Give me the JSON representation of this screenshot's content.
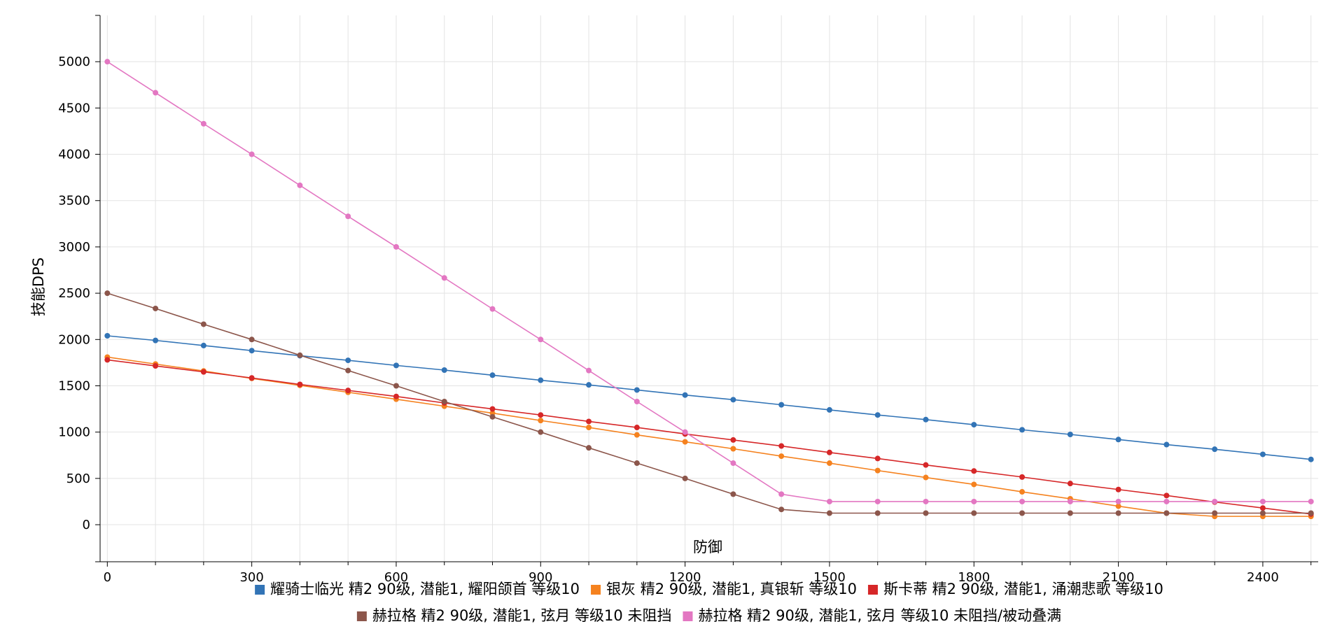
{
  "chart_data": {
    "type": "line",
    "xlabel": "防御",
    "ylabel": "技能DPS",
    "xlim": [
      -15,
      2515
    ],
    "ylim": [
      -400,
      5500
    ],
    "x_ticks": [
      0,
      300,
      600,
      900,
      1200,
      1500,
      1800,
      2100,
      2400
    ],
    "y_ticks": [
      0,
      500,
      1000,
      1500,
      2000,
      2500,
      3000,
      3500,
      4000,
      4500,
      5000
    ],
    "grid": true,
    "legend_position": "bottom",
    "x": [
      0,
      100,
      200,
      300,
      400,
      500,
      600,
      700,
      800,
      900,
      1000,
      1100,
      1200,
      1300,
      1400,
      1500,
      1600,
      1700,
      1800,
      1900,
      2000,
      2100,
      2200,
      2300,
      2400,
      2500
    ],
    "series": [
      {
        "name": "耀骑士临光 精2 90级, 潜能1, 耀阳颌首 等级10",
        "color": "#3274b6",
        "values": [
          2040,
          1990,
          1935,
          1880,
          1825,
          1775,
          1720,
          1670,
          1615,
          1560,
          1510,
          1455,
          1400,
          1350,
          1295,
          1240,
          1185,
          1135,
          1080,
          1025,
          975,
          920,
          865,
          815,
          760,
          705
        ]
      },
      {
        "name": "银灰 精2 90级, 潜能1, 真银斩 等级10",
        "color": "#f5821f",
        "values": [
          1810,
          1735,
          1660,
          1580,
          1505,
          1430,
          1355,
          1280,
          1205,
          1125,
          1050,
          970,
          895,
          820,
          740,
          665,
          585,
          510,
          435,
          355,
          280,
          200,
          125,
          90,
          90,
          90
        ]
      },
      {
        "name": "斯卡蒂 精2 90级, 潜能1, 涌潮悲歌 等级10",
        "color": "#d62728",
        "values": [
          1780,
          1715,
          1650,
          1585,
          1515,
          1450,
          1385,
          1315,
          1250,
          1185,
          1115,
          1050,
          980,
          915,
          850,
          780,
          715,
          645,
          580,
          515,
          445,
          380,
          315,
          245,
          180,
          115
        ]
      },
      {
        "name": "赫拉格 精2 90级, 潜能1, 弦月 等级10 未阻挡",
        "color": "#8c564b",
        "values": [
          2500,
          2335,
          2165,
          2000,
          1830,
          1665,
          1500,
          1330,
          1165,
          1000,
          830,
          665,
          500,
          330,
          165,
          125,
          125,
          125,
          125,
          125,
          125,
          125,
          125,
          125,
          125,
          125
        ]
      },
      {
        "name": "赫拉格 精2 90级, 潜能1, 弦月 等级10 未阻挡/被动叠满",
        "color": "#e377c2",
        "values": [
          5000,
          4665,
          4330,
          4000,
          3665,
          3330,
          3000,
          2665,
          2330,
          2000,
          1665,
          1330,
          1000,
          665,
          330,
          250,
          250,
          250,
          250,
          250,
          250,
          250,
          250,
          250,
          250,
          250
        ]
      }
    ]
  }
}
